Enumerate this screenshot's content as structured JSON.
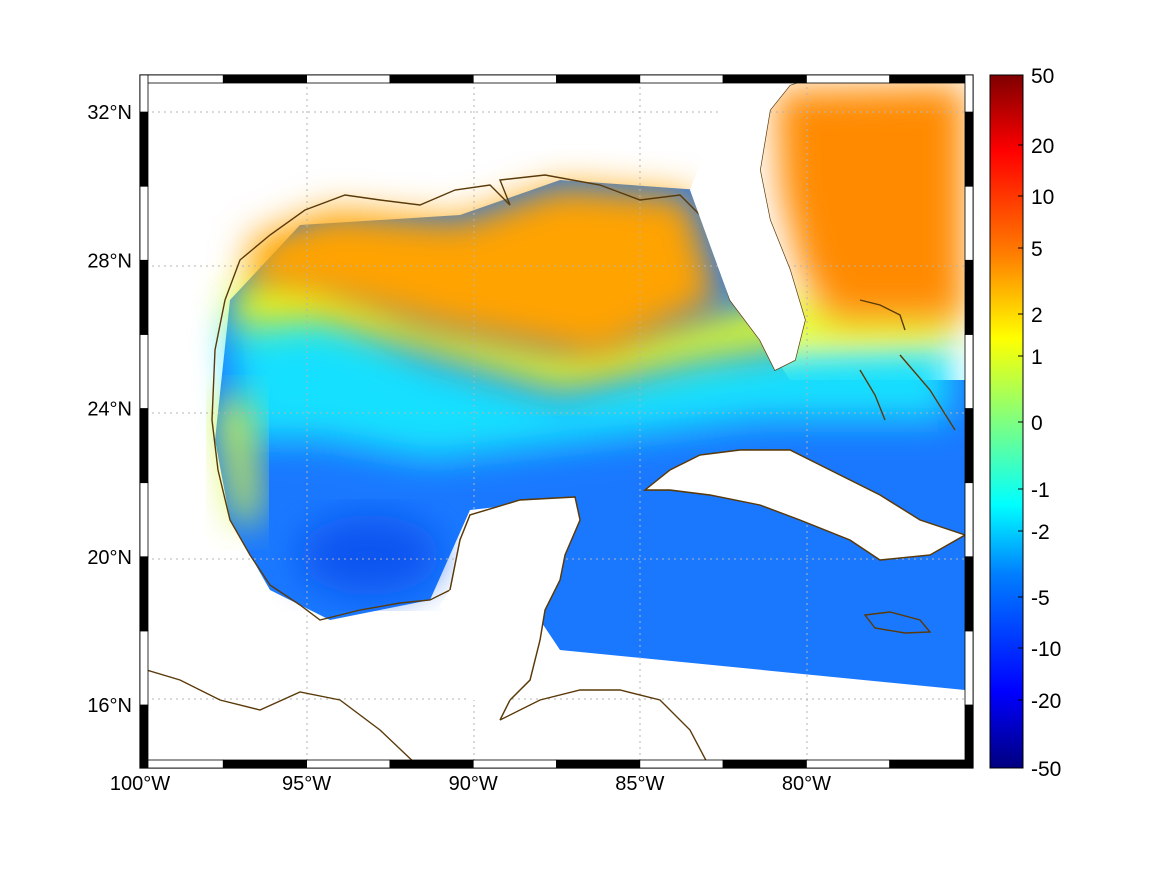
{
  "map": {
    "region": "Gulf of Mexico and Caribbean",
    "lon_range": [
      -100,
      -75
    ],
    "lat_range": [
      14.3,
      33
    ],
    "lon_ticks": [
      {
        "value": -100,
        "label": "100°W"
      },
      {
        "value": -95,
        "label": "95°W"
      },
      {
        "value": -90,
        "label": "90°W"
      },
      {
        "value": -85,
        "label": "85°W"
      },
      {
        "value": -80,
        "label": "80°W"
      }
    ],
    "lat_ticks": [
      {
        "value": 32,
        "label": "32°N"
      },
      {
        "value": 28,
        "label": "28°N"
      },
      {
        "value": 24,
        "label": "24°N"
      },
      {
        "value": 20,
        "label": "20°N"
      },
      {
        "value": 16,
        "label": "16°N"
      }
    ],
    "grid": true,
    "grid_style": "dotted",
    "coastline_color": "#5a3a0a",
    "land_color": "#ffffff",
    "frame_style": "alternating black/white lat-lon border"
  },
  "colorbar": {
    "placement": "right",
    "scale": "symmetric log-like",
    "ticks": [
      "50",
      "20",
      "10",
      "5",
      "2",
      "1",
      "0",
      "-1",
      "-2",
      "-5",
      "-10",
      "-20",
      "-50"
    ],
    "colormap": [
      "#00007f",
      "#0000ff",
      "#007fff",
      "#00ffff",
      "#7fff7f",
      "#ffff00",
      "#ff7f00",
      "#ff0000",
      "#7f0000"
    ]
  }
}
